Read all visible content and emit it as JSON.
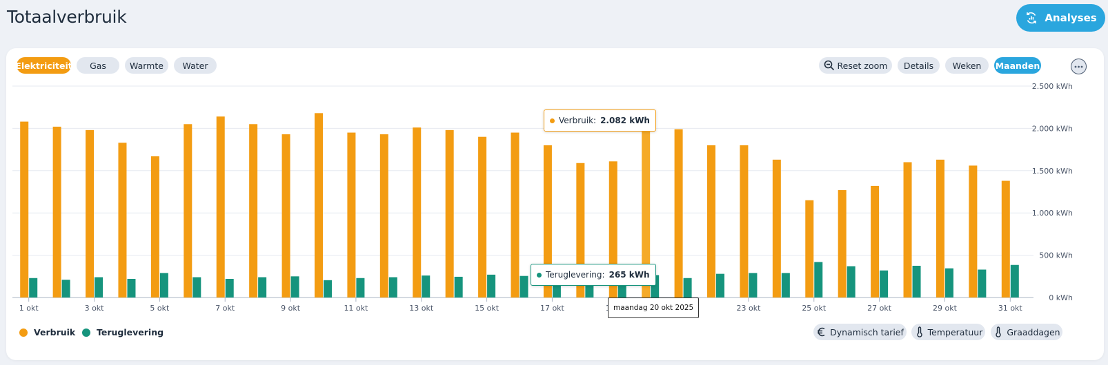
{
  "title": "Totaalverbruik",
  "analyses_button": "Analyses",
  "energy_tabs": [
    {
      "label": "Elektriciteit",
      "active": true
    },
    {
      "label": "Gas",
      "active": false
    },
    {
      "label": "Warmte",
      "active": false
    },
    {
      "label": "Water",
      "active": false
    }
  ],
  "toolbar": {
    "reset_zoom": "Reset zoom",
    "details": "Details",
    "weken": "Weken",
    "maanden": "Maanden"
  },
  "tooltip": {
    "verbruik_label": "Verbruik:",
    "verbruik_value": "2.082 kWh",
    "teruglevering_label": "Teruglevering:",
    "teruglevering_value": "265 kWh",
    "date": "maandag 20 okt 2025"
  },
  "legend": {
    "verbruik": "Verbruik",
    "teruglevering": "Teruglevering"
  },
  "bottom_buttons": {
    "dynamisch": "Dynamisch tarief",
    "temperatuur": "Temperatuur",
    "graaddagen": "Graaddagen"
  },
  "colors": {
    "verbruik": "#f39c12",
    "teruglevering": "#16947d",
    "accent": "#2aa6de"
  },
  "chart_data": {
    "type": "bar",
    "x_tick_labels": [
      "1 okt",
      "3 okt",
      "5 okt",
      "7 okt",
      "9 okt",
      "11 okt",
      "13 okt",
      "15 okt",
      "17 okt",
      "19 okt",
      "21 okt",
      "23 okt",
      "25 okt",
      "27 okt",
      "29 okt",
      "31 okt"
    ],
    "categories": [
      "1 okt",
      "2 okt",
      "3 okt",
      "4 okt",
      "5 okt",
      "6 okt",
      "7 okt",
      "8 okt",
      "9 okt",
      "10 okt",
      "11 okt",
      "12 okt",
      "13 okt",
      "14 okt",
      "15 okt",
      "16 okt",
      "17 okt",
      "18 okt",
      "19 okt",
      "20 okt",
      "21 okt",
      "22 okt",
      "23 okt",
      "24 okt",
      "25 okt",
      "26 okt",
      "27 okt",
      "28 okt",
      "29 okt",
      "30 okt",
      "31 okt"
    ],
    "series": [
      {
        "name": "Verbruik",
        "values": [
          2080,
          2020,
          1980,
          1830,
          1670,
          2050,
          2140,
          2050,
          1930,
          2180,
          1950,
          1930,
          2010,
          1980,
          1900,
          1950,
          1800,
          1590,
          1610,
          2082,
          1990,
          1800,
          1800,
          1630,
          1150,
          1270,
          1320,
          1600,
          1630,
          1560,
          1380
        ]
      },
      {
        "name": "Teruglevering",
        "values": [
          230,
          210,
          240,
          220,
          290,
          240,
          220,
          240,
          250,
          205,
          230,
          240,
          260,
          245,
          270,
          255,
          200,
          230,
          215,
          265,
          230,
          280,
          290,
          290,
          420,
          370,
          320,
          375,
          345,
          330,
          385
        ]
      }
    ],
    "y_ticks": [
      "0 kWh",
      "500 kWh",
      "1.000 kWh",
      "1.500 kWh",
      "2.000 kWh",
      "2.500 kWh"
    ],
    "ylim": [
      0,
      2500
    ],
    "legend_position": "bottom-left",
    "grid": true
  }
}
